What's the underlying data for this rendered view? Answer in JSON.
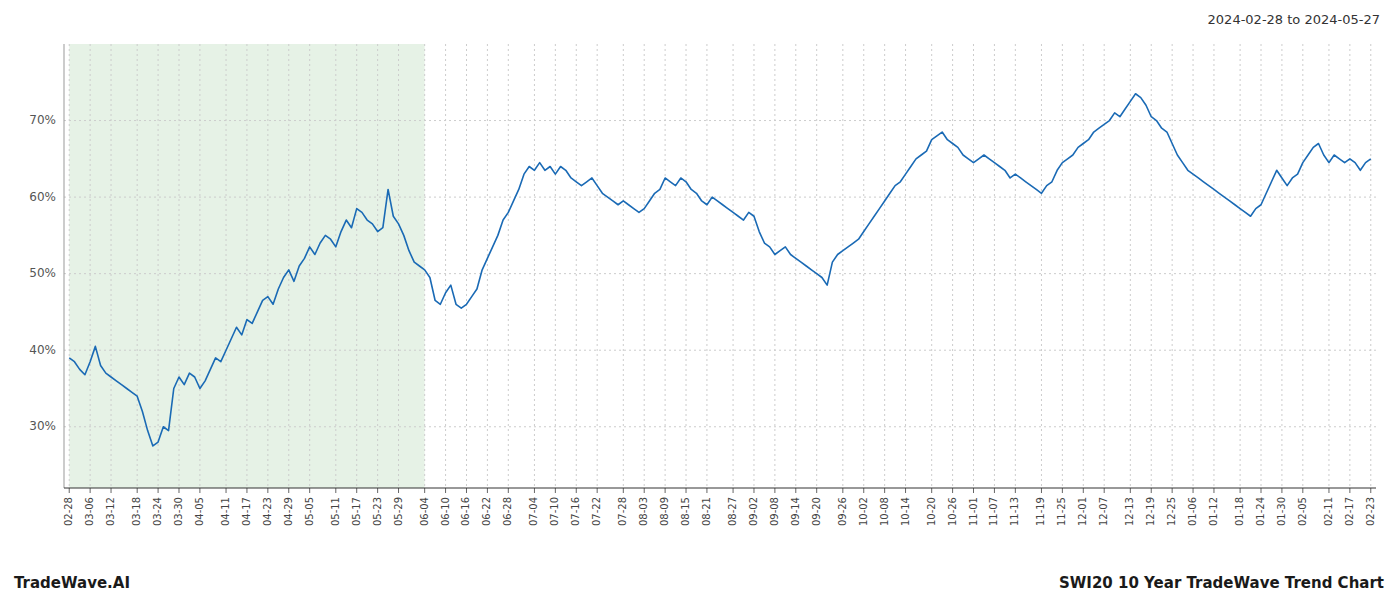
{
  "chart_data": {
    "type": "line",
    "title": "SWI20 10 Year TradeWave Trend Chart",
    "subtitle": "2024-02-28 to 2024-05-27",
    "annotations": [
      "TradeWave.AI"
    ],
    "color": "#1a6ab5",
    "line_style": "solid",
    "grid": true,
    "ylim": [
      22,
      80
    ],
    "yticks": [
      {
        "value": 30,
        "label": "30%"
      },
      {
        "value": 40,
        "label": "40%"
      },
      {
        "value": 50,
        "label": "50%"
      },
      {
        "value": 60,
        "label": "60%"
      },
      {
        "value": 70,
        "label": "70%"
      }
    ],
    "shaded_range": {
      "from": "02-28",
      "to": "06-04",
      "color": "#d6ead6"
    },
    "categories": [
      "02-28",
      null,
      null,
      null,
      "03-06",
      null,
      null,
      null,
      "03-12",
      null,
      null,
      null,
      null,
      "03-18",
      null,
      null,
      null,
      "03-24",
      null,
      null,
      null,
      "03-30",
      null,
      null,
      null,
      "04-05",
      null,
      null,
      null,
      null,
      "04-11",
      null,
      null,
      null,
      "04-17",
      null,
      null,
      null,
      "04-23",
      null,
      null,
      null,
      "04-29",
      null,
      null,
      null,
      "05-05",
      null,
      null,
      null,
      null,
      "05-11",
      null,
      null,
      null,
      "05-17",
      null,
      null,
      null,
      "05-23",
      null,
      null,
      null,
      "05-29",
      null,
      null,
      null,
      null,
      "06-04",
      null,
      null,
      null,
      "06-10",
      null,
      null,
      null,
      "06-16",
      null,
      null,
      null,
      "06-22",
      null,
      null,
      null,
      "06-28",
      null,
      null,
      null,
      null,
      "07-04",
      null,
      null,
      null,
      "07-10",
      null,
      null,
      null,
      "07-16",
      null,
      null,
      null,
      "07-22",
      null,
      null,
      null,
      null,
      "07-28",
      null,
      null,
      null,
      "08-03",
      null,
      null,
      null,
      "08-09",
      null,
      null,
      null,
      "08-15",
      null,
      null,
      null,
      "08-21",
      null,
      null,
      null,
      null,
      "08-27",
      null,
      null,
      null,
      "09-02",
      null,
      null,
      null,
      "09-08",
      null,
      null,
      null,
      "09-14",
      null,
      null,
      null,
      "09-20",
      null,
      null,
      null,
      null,
      "09-26",
      null,
      null,
      null,
      "10-02",
      null,
      null,
      null,
      "10-08",
      null,
      null,
      null,
      "10-14",
      null,
      null,
      null,
      null,
      "10-20",
      null,
      null,
      null,
      "10-26",
      null,
      null,
      null,
      "11-01",
      null,
      null,
      null,
      "11-07",
      null,
      null,
      null,
      "11-13",
      null,
      null,
      null,
      null,
      "11-19",
      null,
      null,
      null,
      "11-25",
      null,
      null,
      null,
      "12-01",
      null,
      null,
      null,
      "12-07",
      null,
      null,
      null,
      null,
      "12-13",
      null,
      null,
      null,
      "12-19",
      null,
      null,
      null,
      "12-25",
      null,
      null,
      null,
      "01-06",
      null,
      null,
      null,
      "01-12",
      null,
      null,
      null,
      null,
      "01-18",
      null,
      null,
      null,
      "01-24",
      null,
      null,
      null,
      "01-30",
      null,
      null,
      null,
      "02-05",
      null,
      null,
      null,
      null,
      "02-11",
      null,
      null,
      null,
      "02-17",
      null,
      null,
      null,
      "02-23"
    ],
    "values": [
      39.0,
      38.5,
      37.5,
      36.8,
      38.5,
      40.5,
      38.0,
      37.0,
      36.5,
      36.0,
      35.5,
      35.0,
      34.5,
      34.0,
      32.0,
      29.5,
      27.5,
      28.0,
      30.0,
      29.5,
      35.0,
      36.5,
      35.5,
      37.0,
      36.5,
      35.0,
      36.0,
      37.5,
      39.0,
      38.5,
      40.0,
      41.5,
      43.0,
      42.0,
      44.0,
      43.5,
      45.0,
      46.5,
      47.0,
      46.0,
      48.0,
      49.5,
      50.5,
      49.0,
      51.0,
      52.0,
      53.5,
      52.5,
      54.0,
      55.0,
      54.5,
      53.5,
      55.5,
      57.0,
      56.0,
      58.5,
      58.0,
      57.0,
      56.5,
      55.5,
      56.0,
      61.0,
      57.5,
      56.5,
      55.0,
      53.0,
      51.5,
      51.0,
      50.5,
      49.5,
      46.5,
      46.0,
      47.5,
      48.5,
      46.0,
      45.5,
      46.0,
      47.0,
      48.0,
      50.5,
      52.0,
      53.5,
      55.0,
      57.0,
      58.0,
      59.5,
      61.0,
      63.0,
      64.0,
      63.5,
      64.5,
      63.5,
      64.0,
      63.0,
      64.0,
      63.5,
      62.5,
      62.0,
      61.5,
      62.0,
      62.5,
      61.5,
      60.5,
      60.0,
      59.5,
      59.0,
      59.5,
      59.0,
      58.5,
      58.0,
      58.5,
      59.5,
      60.5,
      61.0,
      62.5,
      62.0,
      61.5,
      62.5,
      62.0,
      61.0,
      60.5,
      59.5,
      59.0,
      60.0,
      59.5,
      59.0,
      58.5,
      58.0,
      57.5,
      57.0,
      58.0,
      57.5,
      55.5,
      54.0,
      53.5,
      52.5,
      53.0,
      53.5,
      52.5,
      52.0,
      51.5,
      51.0,
      50.5,
      50.0,
      49.5,
      48.5,
      51.5,
      52.5,
      53.0,
      53.5,
      54.0,
      54.5,
      55.5,
      56.5,
      57.5,
      58.5,
      59.5,
      60.5,
      61.5,
      62.0,
      63.0,
      64.0,
      65.0,
      65.5,
      66.0,
      67.5,
      68.0,
      68.5,
      67.5,
      67.0,
      66.5,
      65.5,
      65.0,
      64.5,
      65.0,
      65.5,
      65.0,
      64.5,
      64.0,
      63.5,
      62.5,
      63.0,
      62.5,
      62.0,
      61.5,
      61.0,
      60.5,
      61.5,
      62.0,
      63.5,
      64.5,
      65.0,
      65.5,
      66.5,
      67.0,
      67.5,
      68.5,
      69.0,
      69.5,
      70.0,
      71.0,
      70.5,
      71.5,
      72.5,
      73.5,
      73.0,
      72.0,
      70.5,
      70.0,
      69.0,
      68.5,
      67.0,
      65.5,
      64.5,
      63.5,
      63.0,
      62.5,
      62.0,
      61.5,
      61.0,
      60.5,
      60.0,
      59.5,
      59.0,
      58.5,
      58.0,
      57.5,
      58.5,
      59.0,
      60.5,
      62.0,
      63.5,
      62.5,
      61.5,
      62.5,
      63.0,
      64.5,
      65.5,
      66.5,
      67.0,
      65.5,
      64.5,
      65.5,
      65.0,
      64.5,
      65.0,
      64.5,
      63.5,
      64.5,
      65.0
    ]
  }
}
